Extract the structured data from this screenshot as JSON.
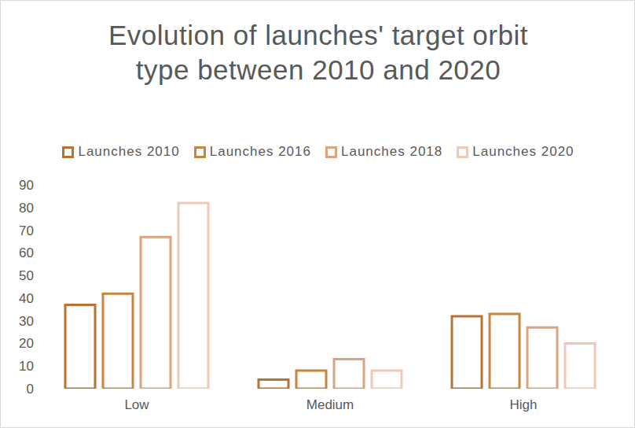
{
  "chart_data": {
    "type": "bar",
    "title": "Evolution of launches' target orbit type between 2010 and 2020",
    "categories": [
      "Low",
      "Medium",
      "High"
    ],
    "series": [
      {
        "name": "Launches 2010",
        "color": "#b87333",
        "values": [
          37,
          4,
          32
        ]
      },
      {
        "name": "Launches 2016",
        "color": "#c98540",
        "values": [
          42,
          8,
          33
        ]
      },
      {
        "name": "Launches 2018",
        "color": "#dba37f",
        "values": [
          67,
          13,
          27
        ]
      },
      {
        "name": "Launches 2020",
        "color": "#efc9b5",
        "values": [
          82,
          8,
          20
        ]
      }
    ],
    "ylim": [
      0,
      90
    ],
    "yticks": [
      0,
      10,
      20,
      30,
      40,
      50,
      60,
      70,
      80,
      90
    ],
    "grid": false,
    "legend": "top",
    "data_labels": false
  }
}
